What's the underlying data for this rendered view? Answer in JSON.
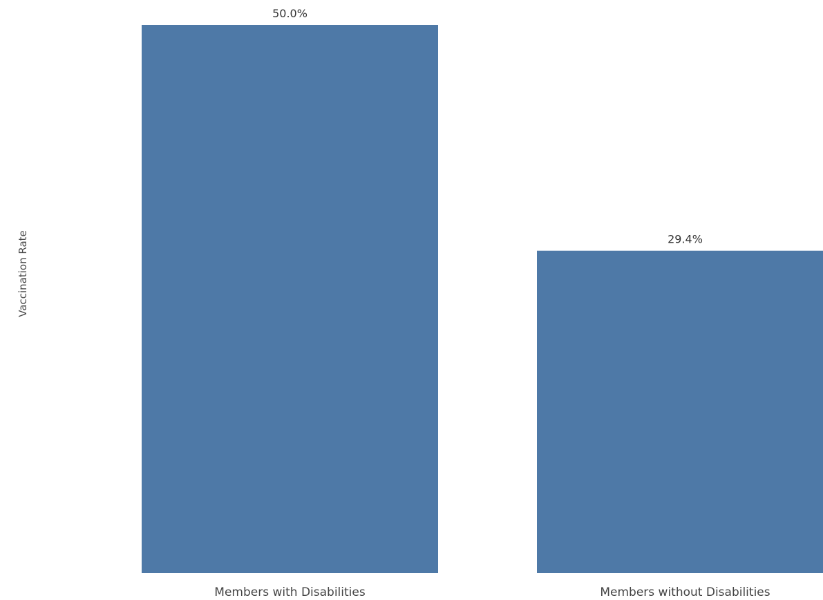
{
  "chart_data": {
    "type": "bar",
    "categories": [
      "Members with Disabilities",
      "Members without Disabilities"
    ],
    "values": [
      50.0,
      29.4
    ],
    "data_labels": [
      "50.0%",
      "29.4%"
    ],
    "ylabel": "Vaccination Rate",
    "xlabel": "",
    "ylim": [
      0,
      50
    ],
    "grid": false,
    "legend": "none",
    "bar_color": "#4e79a7"
  }
}
